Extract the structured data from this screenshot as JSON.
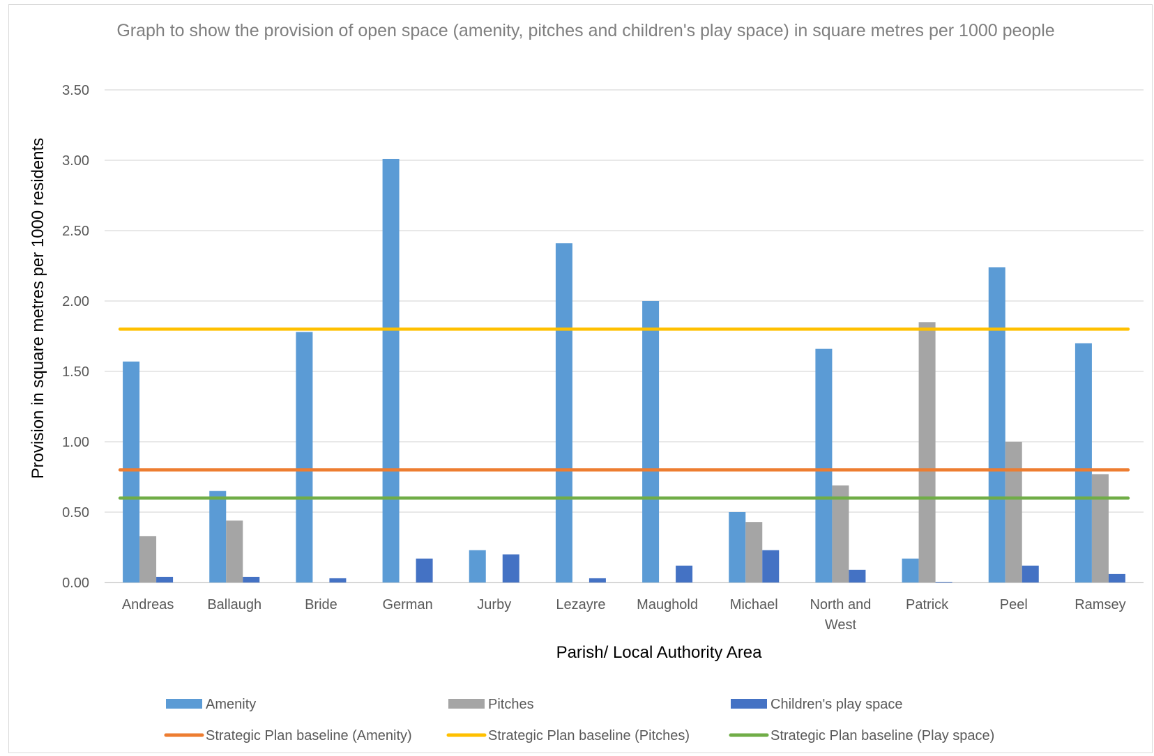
{
  "chart_data": {
    "type": "bar",
    "title": "Graph to show the provision of open space (amenity, pitches and children's play space) in square metres per 1000 people",
    "xlabel": "Parish/ Local Authority Area",
    "ylabel": "Provision in square metres per 1000 residents",
    "ylim": [
      0,
      3.5
    ],
    "yticks": [
      "0.00",
      "0.50",
      "1.00",
      "1.50",
      "2.00",
      "2.50",
      "3.00",
      "3.50"
    ],
    "grid": true,
    "legend_position": "bottom",
    "categories": [
      "Andreas",
      "Ballaugh",
      "Bride",
      "German",
      "Jurby",
      "Lezayre",
      "Maughold",
      "Michael",
      "North and West",
      "Patrick",
      "Peel",
      "Ramsey"
    ],
    "series": [
      {
        "name": "Amenity",
        "color": "#5b9bd5",
        "values": [
          1.57,
          0.65,
          1.78,
          3.01,
          0.23,
          2.41,
          2.0,
          0.5,
          1.66,
          0.17,
          2.24,
          1.7
        ]
      },
      {
        "name": "Pitches",
        "color": "#a5a5a5",
        "values": [
          0.33,
          0.44,
          0,
          0,
          0,
          0,
          0,
          0.43,
          0.69,
          1.85,
          1.0,
          0.77
        ]
      },
      {
        "name": "Children's play space",
        "color": "#4472c4",
        "values": [
          0.04,
          0.04,
          0.03,
          0.17,
          0.2,
          0.03,
          0.12,
          0.23,
          0.09,
          0.005,
          0.12,
          0.06
        ]
      }
    ],
    "baselines": [
      {
        "name": "Strategic Plan baseline (Amenity)",
        "color": "#ed7d31",
        "value": 0.8
      },
      {
        "name": "Strategic Plan baseline (Pitches)",
        "color": "#ffc000",
        "value": 1.8
      },
      {
        "name": "Strategic Plan baseline (Play space)",
        "color": "#70ad47",
        "value": 0.6
      }
    ]
  }
}
